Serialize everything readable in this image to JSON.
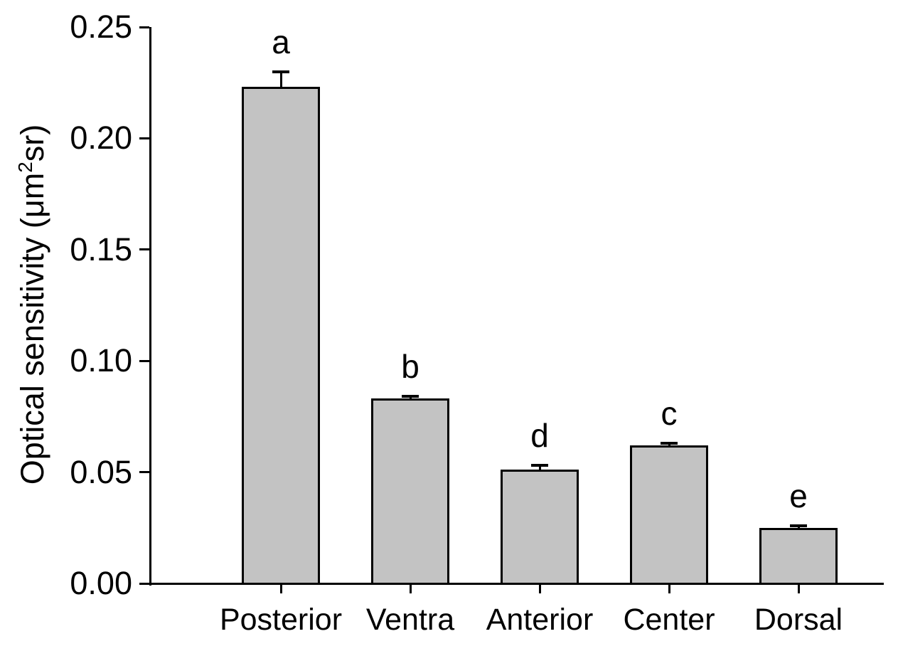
{
  "figure": {
    "background_color": "#ffffff",
    "text_color": "#000000"
  },
  "chart_data": {
    "type": "bar",
    "title": "",
    "categories": [
      "Posterior",
      "Ventra",
      "Anterior",
      "Center",
      "Dorsal"
    ],
    "values": [
      0.223,
      0.083,
      0.051,
      0.062,
      0.025
    ],
    "errors": [
      0.007,
      0.001,
      0.002,
      0.001,
      0.001
    ],
    "error_bar_direction": "upper-only",
    "bar_letters": [
      "a",
      "b",
      "d",
      "c",
      "e"
    ],
    "ylabel": "Optical sensitivity (μm²sr)",
    "ylabel_parts": {
      "prefix": "Optical sensitivity (",
      "mu_unit": "μm",
      "superscript": "2",
      "suffix": "sr)"
    },
    "xlabel": "",
    "yticks": [
      "0.00",
      "0.05",
      "0.10",
      "0.15",
      "0.20",
      "0.25"
    ],
    "ylim": [
      0,
      0.25
    ],
    "grid": false,
    "legend": null,
    "bar_color": "#c3c3c3",
    "bar_border_color": "#000000",
    "axis_color": "#000000"
  }
}
